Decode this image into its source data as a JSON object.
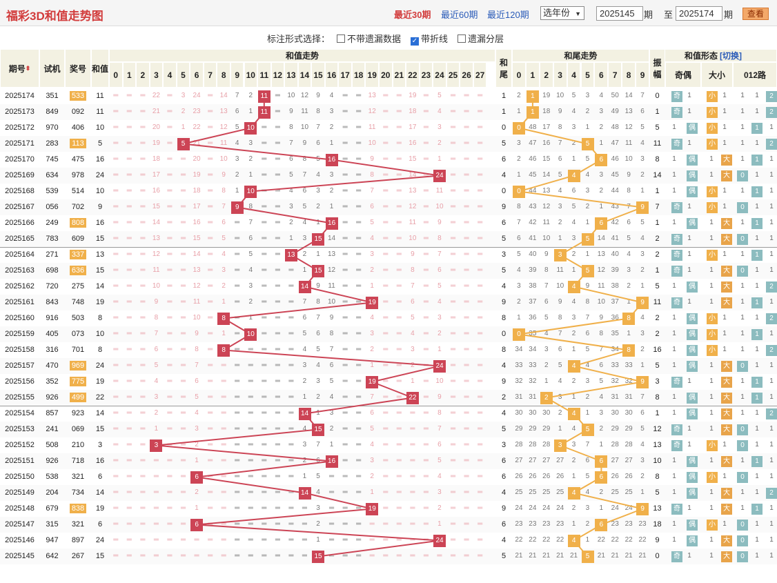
{
  "page": {
    "title": "福彩3D和值走势图",
    "ranges": [
      {
        "label": "最近30期",
        "active": true
      },
      {
        "label": "最近60期",
        "active": false
      },
      {
        "label": "最近120期",
        "active": false
      }
    ],
    "year_select": "选年份",
    "from": "2025145",
    "to": "2025174",
    "qi": "期",
    "zhi": "至",
    "query": "查看"
  },
  "options": {
    "label": "标注形式选择：",
    "items": [
      {
        "label": "不带遗漏数据",
        "checked": false
      },
      {
        "label": "带折线",
        "checked": true
      },
      {
        "label": "遗漏分层",
        "checked": false
      }
    ]
  },
  "header": {
    "issue": "期号",
    "test": "试机",
    "prize": "奖号",
    "sum": "和值",
    "sum_trend": "和值走势",
    "tail": "和尾",
    "tail_trend": "和尾走势",
    "form": "和值形态",
    "switch": "[切换]",
    "amp": "振幅",
    "oe": "奇偶",
    "bs": "大小",
    "r012": "012路"
  },
  "colors": {
    "red": "#cc4455",
    "orange": "#f0b04a",
    "teal": "#8cbcbf",
    "hdr": "#f3f1e2",
    "band": "#f7f7ef"
  },
  "rows": [
    {
      "issue": "2025174",
      "test": "351",
      "prize": "533",
      "pair": true,
      "sum": 11
    },
    {
      "issue": "2025173",
      "test": "849",
      "prize": "092",
      "pair": false,
      "sum": 11
    },
    {
      "issue": "2025172",
      "test": "970",
      "prize": "406",
      "pair": false,
      "sum": 10
    },
    {
      "issue": "2025171",
      "test": "283",
      "prize": "113",
      "pair": true,
      "sum": 5
    },
    {
      "issue": "2025170",
      "test": "745",
      "prize": "475",
      "pair": false,
      "sum": 16
    },
    {
      "issue": "2025169",
      "test": "634",
      "prize": "978",
      "pair": false,
      "sum": 24
    },
    {
      "issue": "2025168",
      "test": "539",
      "prize": "514",
      "pair": false,
      "sum": 10
    },
    {
      "issue": "2025167",
      "test": "056",
      "prize": "702",
      "pair": false,
      "sum": 9
    },
    {
      "issue": "2025166",
      "test": "249",
      "prize": "808",
      "pair": true,
      "sum": 16
    },
    {
      "issue": "2025165",
      "test": "783",
      "prize": "609",
      "pair": false,
      "sum": 15
    },
    {
      "issue": "2025164",
      "test": "271",
      "prize": "337",
      "pair": true,
      "sum": 13
    },
    {
      "issue": "2025163",
      "test": "698",
      "prize": "636",
      "pair": true,
      "sum": 15
    },
    {
      "issue": "2025162",
      "test": "720",
      "prize": "275",
      "pair": false,
      "sum": 14
    },
    {
      "issue": "2025161",
      "test": "843",
      "prize": "748",
      "pair": false,
      "sum": 19
    },
    {
      "issue": "2025160",
      "test": "916",
      "prize": "503",
      "pair": false,
      "sum": 8
    },
    {
      "issue": "2025159",
      "test": "405",
      "prize": "073",
      "pair": false,
      "sum": 10
    },
    {
      "issue": "2025158",
      "test": "316",
      "prize": "701",
      "pair": false,
      "sum": 8
    },
    {
      "issue": "2025157",
      "test": "470",
      "prize": "969",
      "pair": true,
      "sum": 24
    },
    {
      "issue": "2025156",
      "test": "352",
      "prize": "775",
      "pair": true,
      "sum": 19
    },
    {
      "issue": "2025155",
      "test": "926",
      "prize": "499",
      "pair": true,
      "sum": 22
    },
    {
      "issue": "2025154",
      "test": "857",
      "prize": "923",
      "pair": false,
      "sum": 14
    },
    {
      "issue": "2025153",
      "test": "241",
      "prize": "069",
      "pair": false,
      "sum": 15
    },
    {
      "issue": "2025152",
      "test": "508",
      "prize": "210",
      "pair": false,
      "sum": 3
    },
    {
      "issue": "2025151",
      "test": "926",
      "prize": "718",
      "pair": false,
      "sum": 16
    },
    {
      "issue": "2025150",
      "test": "538",
      "prize": "321",
      "pair": false,
      "sum": 6
    },
    {
      "issue": "2025149",
      "test": "204",
      "prize": "734",
      "pair": false,
      "sum": 14
    },
    {
      "issue": "2025148",
      "test": "679",
      "prize": "838",
      "pair": true,
      "sum": 19
    },
    {
      "issue": "2025147",
      "test": "315",
      "prize": "321",
      "pair": false,
      "sum": 6
    },
    {
      "issue": "2025146",
      "test": "947",
      "prize": "897",
      "pair": false,
      "sum": 24
    },
    {
      "issue": "2025145",
      "test": "642",
      "prize": "267",
      "pair": false,
      "sum": 15
    }
  ]
}
